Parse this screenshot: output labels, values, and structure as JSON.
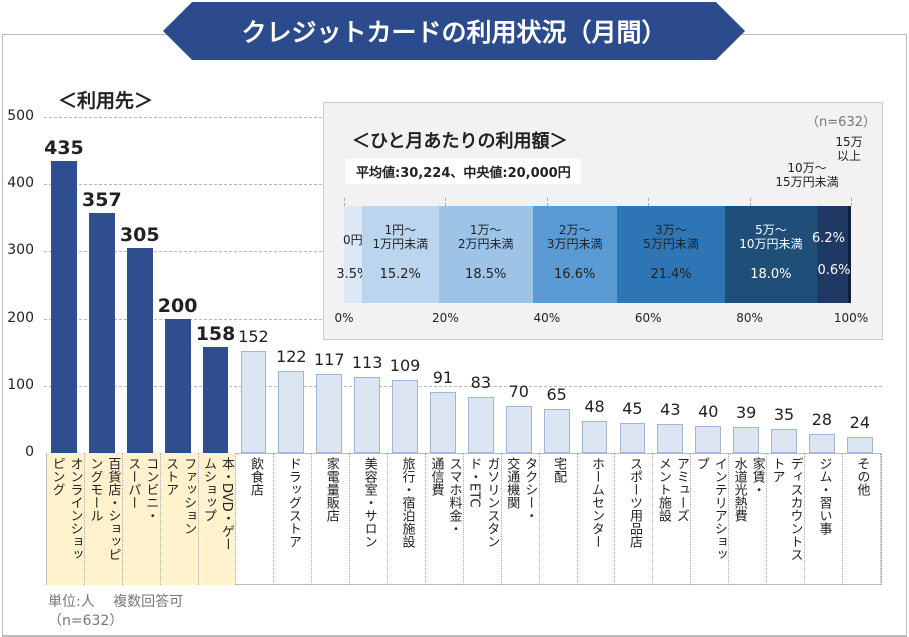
{
  "title": "クレジットカードの利用状況（月間）",
  "colors": {
    "banner": "#2b4b8c",
    "top_bar": "#2e4e8f",
    "other_bar": "#dce6f2",
    "highlight": "#fff2cc"
  },
  "chart_data": [
    {
      "type": "bar",
      "title": "＜利用先＞",
      "ylim": [
        0,
        500
      ],
      "yticks": [
        "0",
        "100",
        "200",
        "300",
        "400",
        "500"
      ],
      "categories": [
        "オンラインショッ\nピング",
        "百貨店・ショッピ\nングモール",
        "コンビニ・\nスーパー",
        "ファッション\nストア",
        "本・DVD・ゲー\nムショップ",
        "飲食店",
        "ドラッグストア",
        "家電量販店",
        "美容室・サロン",
        "旅行・宿泊施設",
        "スマホ料金・\n通信費",
        "ガソリンスタン\nド・ETC",
        "タクシー・\n交通機関",
        "宅配",
        "ホームセンター",
        "スポーツ用品店",
        "アミューズ\nメント施設",
        "インテリアショッ\nプ",
        "家賃・\n水道光熱費",
        "ディスカウントス\nトア",
        "ジム・習い事",
        "その他"
      ],
      "values": [
        435,
        357,
        305,
        200,
        158,
        152,
        122,
        117,
        113,
        109,
        91,
        83,
        70,
        65,
        48,
        45,
        43,
        40,
        39,
        35,
        28,
        24
      ],
      "highlighted_count": 5,
      "unit_note": "単位:人　 複数回答可",
      "n_note": "（n=632）"
    },
    {
      "type": "bar",
      "orientation": "stacked-horizontal",
      "title": "＜ひと月あたりの利用額＞",
      "stats": "平均値:30,224、中央値:20,000円",
      "n_note": "（n=632）",
      "xticks": [
        "0%",
        "20%",
        "40%",
        "60%",
        "80%",
        "100%"
      ],
      "segments": [
        {
          "label": "0円",
          "pct": 3.5,
          "pct_label": "3.5%",
          "color": "#dce8f5",
          "text": "#222"
        },
        {
          "label": "1円～\n1万円未満",
          "pct": 15.2,
          "pct_label": "15.2%",
          "color": "#bcd5ee",
          "text": "#222"
        },
        {
          "label": "1万～\n2万円未満",
          "pct": 18.5,
          "pct_label": "18.5%",
          "color": "#9dc3e6",
          "text": "#222"
        },
        {
          "label": "2万～\n3万円未満",
          "pct": 16.6,
          "pct_label": "16.6%",
          "color": "#5b9bd5",
          "text": "#222"
        },
        {
          "label": "3万～\n5万円未満",
          "pct": 21.4,
          "pct_label": "21.4%",
          "color": "#2e75b6",
          "text": "#222"
        },
        {
          "label": "5万～\n10万円未満",
          "pct": 18.0,
          "pct_label": "18.0%",
          "color": "#1f4e79",
          "text": "#fff"
        },
        {
          "label": "10万～\n15万円未満",
          "pct": 6.2,
          "pct_label": "6.2%",
          "color": "#203864",
          "text": "#fff"
        },
        {
          "label": "15万\n以上",
          "pct": 0.6,
          "pct_label": "0.6%",
          "color": "#10203f",
          "text": "#fff"
        }
      ]
    }
  ]
}
